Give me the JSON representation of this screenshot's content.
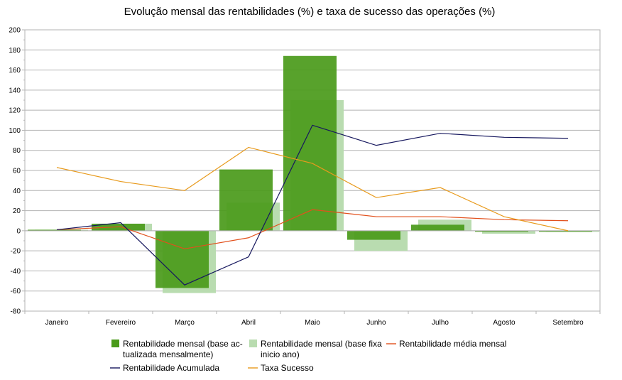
{
  "chart_data": {
    "type": "bar",
    "title": "Evolução mensal das rentabilidades (%) e taxa de sucesso das operações (%)",
    "categories": [
      "Janeiro",
      "Fevereiro",
      "Março",
      "Abril",
      "Maio",
      "Junho",
      "Julho",
      "Agosto",
      "Setembro"
    ],
    "ylim": [
      -80,
      200
    ],
    "yticks": [
      -80,
      -60,
      -40,
      -20,
      0,
      20,
      40,
      60,
      80,
      100,
      120,
      140,
      160,
      180,
      200
    ],
    "grid": true,
    "legend_position": "bottom",
    "series": [
      {
        "name": "Rentabilidade mensal (base actualizada mensalmente)",
        "legend_lines": [
          "Rentabilidade mensal (base ac-",
          "tualizada mensalmente)"
        ],
        "kind": "bar",
        "color": "#4a9a1a",
        "values": [
          1,
          7,
          -57,
          61,
          174,
          -9,
          6,
          -1,
          0
        ]
      },
      {
        "name": "Rentabilidade mensal (base fixa inicio ano)",
        "legend_lines": [
          "Rentabilidade mensal (base fixa",
          "inicio ano)"
        ],
        "kind": "bar",
        "color": "#b9dcb0",
        "values": [
          1,
          7,
          -62,
          28,
          130,
          -20,
          11,
          -3,
          0
        ]
      },
      {
        "name": "Rentabilidade média mensal",
        "legend_lines": [
          "Rentabilidade média mensal"
        ],
        "kind": "line",
        "color": "#e2501c",
        "values": [
          1,
          4,
          -18,
          -7,
          21,
          14,
          14,
          11,
          10
        ]
      },
      {
        "name": "Rentabilidade Acumulada",
        "legend_lines": [
          "Rentabilidade Acumulada"
        ],
        "kind": "line",
        "color": "#16175e",
        "values": [
          1,
          8,
          -54,
          -26,
          105,
          85,
          97,
          93,
          92
        ]
      },
      {
        "name": "Taxa Sucesso",
        "legend_lines": [
          "Taxa Sucesso"
        ],
        "kind": "line",
        "color": "#e89a1c",
        "values": [
          63,
          49,
          40,
          83,
          67,
          33,
          43,
          14,
          0
        ]
      }
    ]
  }
}
